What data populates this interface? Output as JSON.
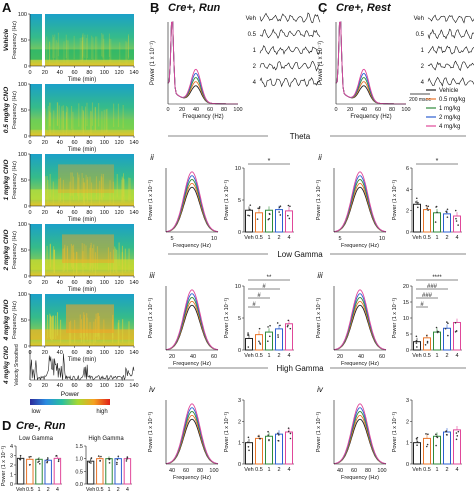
{
  "panels": {
    "A": {
      "label": "A",
      "rows": [
        {
          "name": "Vehicle",
          "band": "#1db36b"
        },
        {
          "name": "0.5 mg/kg CNO",
          "band": "#6bd053"
        },
        {
          "name": "1 mg/kg CNO",
          "band": "#b8dd3a"
        },
        {
          "name": "2 mg/kg CNO",
          "band": "#c9d92e"
        },
        {
          "name": "4 mg/kg CNO",
          "band": "#e8b427"
        }
      ],
      "ylabel": "Frequency (Hz)",
      "yticks": [
        "100",
        "50",
        "0"
      ],
      "xlabel": "Time (min)",
      "xticks": [
        "0",
        "20",
        "40",
        "60",
        "80",
        "100",
        "120",
        "140"
      ],
      "velocity_row": {
        "name": "4 mg/kg CNO",
        "ylabel": "Velocity Smoothed"
      },
      "colorbar": {
        "title": "Power",
        "low": "low",
        "high": "high"
      }
    },
    "B": {
      "label": "B",
      "title": "Cre+, Run",
      "sub_i": "i",
      "psd_ylabel": "Power (1 x 10⁻¹)",
      "psd_xlabel": "Frequency (Hz)",
      "psd_xticks": [
        "0",
        "20",
        "40",
        "60",
        "80",
        "100"
      ],
      "trace_labels": [
        "Veh",
        "0.5",
        "1",
        "2",
        "4"
      ],
      "scale_bar": "200 msec"
    },
    "C": {
      "label": "C",
      "title": "Cre+, Rest",
      "sub_i": "i",
      "trace_labels": [
        "Veh",
        "0.5",
        "1",
        "2",
        "4"
      ]
    },
    "D": {
      "label": "D",
      "title": "Cre-, Run",
      "subtitles": [
        "Low Gamma",
        "High Gamma"
      ],
      "ylabel": "Power (1 x 10⁻¹)",
      "xticks": [
        "Veh",
        "0.5",
        "1",
        "2",
        "4"
      ]
    }
  },
  "legend": [
    {
      "label": "Vehicle",
      "color": "#222222"
    },
    {
      "label": "0.5 mg/kg",
      "color": "#e8742a"
    },
    {
      "label": "1 mg/kg",
      "color": "#2f8a3a"
    },
    {
      "label": "2 mg/kg",
      "color": "#2d5fd0"
    },
    {
      "label": "4 mg/kg",
      "color": "#e0489a"
    }
  ],
  "sections": [
    {
      "name": "Theta",
      "row": "ii",
      "freq_ticks": [
        "5",
        "10"
      ],
      "freq_label": "Frequency (Hz)"
    },
    {
      "name": "Low Gamma",
      "row": "iii",
      "freq_ticks": [
        "20",
        "40",
        "60"
      ],
      "freq_label": "Frequency (Hz)"
    },
    {
      "name": "High Gamma",
      "row": "iv",
      "freq_ticks": [
        "40",
        "60",
        "80",
        "100"
      ],
      "freq_label": "Frequency (Hz)"
    }
  ],
  "bar_xticks": [
    "Veh",
    "0.5",
    "1",
    "2",
    "4"
  ],
  "bar_ylabel": "Power (1 x 10⁻¹)",
  "significance": {
    "theta_B": "*",
    "theta_C": "*",
    "lowgamma_B": [
      "**",
      "#",
      "#",
      "#"
    ],
    "lowgamma_C": [
      "****",
      "###",
      "###",
      "#"
    ]
  },
  "chart_data": [
    {
      "type": "bar",
      "panel": "B-ii",
      "categories": [
        "Veh",
        "0.5",
        "1",
        "2",
        "4"
      ],
      "values": [
        3.4,
        3.0,
        3.4,
        3.5,
        3.3
      ],
      "ylim": [
        0,
        10
      ],
      "yticks": [
        "0",
        "5",
        "10"
      ]
    },
    {
      "type": "bar",
      "panel": "B-iii",
      "categories": [
        "Veh",
        "0.5",
        "1",
        "2",
        "4"
      ],
      "values": [
        1.8,
        2.4,
        2.8,
        3.3,
        4.1
      ],
      "ylim": [
        0,
        10
      ],
      "yticks": [
        "0",
        "5",
        "10"
      ]
    },
    {
      "type": "bar",
      "panel": "B-iv",
      "categories": [
        "Veh",
        "0.5",
        "1",
        "2",
        "4"
      ],
      "values": [
        1.0,
        1.2,
        1.3,
        1.4,
        1.5
      ],
      "ylim": [
        0,
        3
      ],
      "yticks": [
        "0",
        "1",
        "2",
        "3"
      ]
    },
    {
      "type": "bar",
      "panel": "C-ii",
      "categories": [
        "Veh",
        "0.5",
        "1",
        "2",
        "4"
      ],
      "values": [
        2.6,
        2.1,
        1.8,
        1.7,
        1.5
      ],
      "ylim": [
        0,
        6
      ],
      "yticks": [
        "0",
        "2",
        "4",
        "6"
      ]
    },
    {
      "type": "bar",
      "panel": "C-iii",
      "categories": [
        "Veh",
        "0.5",
        "1",
        "2",
        "4"
      ],
      "values": [
        2.6,
        3.8,
        5.6,
        6.8,
        8.6
      ],
      "ylim": [
        0,
        20
      ],
      "yticks": [
        "0",
        "5",
        "10",
        "15",
        "20"
      ]
    },
    {
      "type": "bar",
      "panel": "C-iv",
      "categories": [
        "Veh",
        "0.5",
        "1",
        "2",
        "4"
      ],
      "values": [
        1.0,
        1.2,
        1.3,
        1.5,
        1.6
      ],
      "ylim": [
        0,
        3
      ],
      "yticks": [
        "0",
        "1",
        "2",
        "3"
      ]
    },
    {
      "type": "bar",
      "panel": "D-lowgamma",
      "categories": [
        "Veh",
        "0.5",
        "1",
        "2",
        "4"
      ],
      "values": [
        2.7,
        2.6,
        2.6,
        2.5,
        2.7
      ],
      "ylim": [
        0,
        4
      ],
      "yticks": [
        "0",
        "1",
        "2",
        "3",
        "4"
      ]
    },
    {
      "type": "bar",
      "panel": "D-highgamma",
      "categories": [
        "Veh",
        "0.5",
        "1",
        "2",
        "4"
      ],
      "values": [
        0.9,
        1.0,
        1.0,
        1.0,
        1.0
      ],
      "ylim": [
        0,
        1.5
      ],
      "yticks": [
        "0.0",
        "0.5",
        "1.0",
        "1.5"
      ]
    }
  ]
}
